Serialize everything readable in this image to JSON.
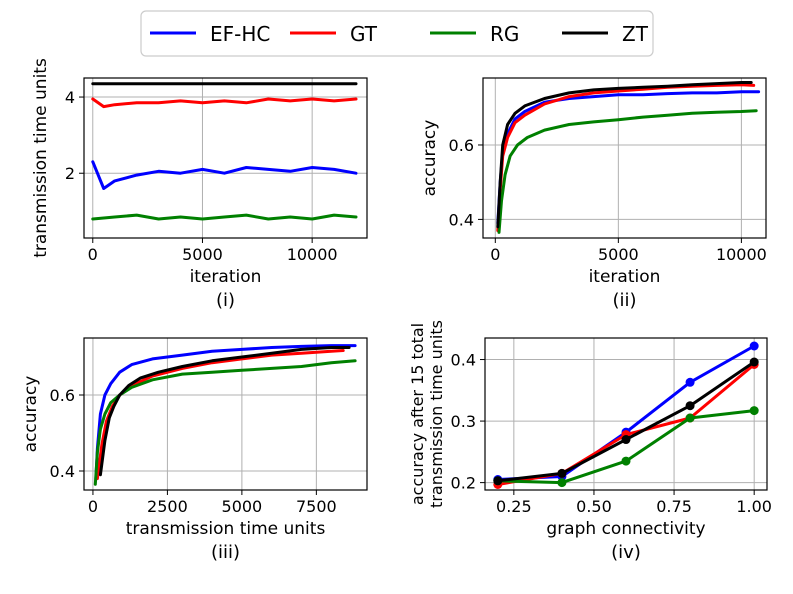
{
  "legend": {
    "placement": "top-center",
    "entries": [
      {
        "label": "EF-HC",
        "color": "#0000ff"
      },
      {
        "label": "GT",
        "color": "#ff0000"
      },
      {
        "label": "RG",
        "color": "#008000"
      },
      {
        "label": "ZT",
        "color": "#000000"
      }
    ]
  },
  "chart_data": [
    {
      "id": "i",
      "type": "line",
      "caption": "(i)",
      "xlabel": "iteration",
      "ylabel": "transmission time units",
      "xlim": [
        -400,
        12500
      ],
      "ylim": [
        0.3,
        4.5
      ],
      "xticks": [
        0,
        5000,
        10000
      ],
      "yticks": [
        2,
        4
      ],
      "grid": true,
      "series": [
        {
          "name": "ZT",
          "x": [
            0,
            12000
          ],
          "y": [
            4.35,
            4.35
          ]
        },
        {
          "name": "GT",
          "x": [
            0,
            500,
            1000,
            2000,
            3000,
            4000,
            5000,
            6000,
            7000,
            8000,
            9000,
            10000,
            11000,
            12000
          ],
          "y": [
            3.95,
            3.75,
            3.8,
            3.85,
            3.85,
            3.9,
            3.85,
            3.9,
            3.85,
            3.95,
            3.9,
            3.95,
            3.9,
            3.95
          ]
        },
        {
          "name": "EF-HC",
          "x": [
            0,
            500,
            1000,
            2000,
            3000,
            4000,
            5000,
            6000,
            7000,
            8000,
            9000,
            10000,
            11000,
            12000
          ],
          "y": [
            2.3,
            1.6,
            1.8,
            1.95,
            2.05,
            2.0,
            2.1,
            2.0,
            2.15,
            2.1,
            2.05,
            2.15,
            2.1,
            2.0
          ]
        },
        {
          "name": "RG",
          "x": [
            0,
            1000,
            2000,
            3000,
            4000,
            5000,
            6000,
            7000,
            8000,
            9000,
            10000,
            11000,
            12000
          ],
          "y": [
            0.8,
            0.85,
            0.9,
            0.8,
            0.85,
            0.8,
            0.85,
            0.9,
            0.8,
            0.85,
            0.8,
            0.9,
            0.85
          ]
        }
      ]
    },
    {
      "id": "ii",
      "type": "line",
      "caption": "(ii)",
      "xlabel": "iteration",
      "ylabel": "accuracy",
      "xlim": [
        -500,
        11000
      ],
      "ylim": [
        0.35,
        0.78
      ],
      "xticks": [
        0,
        5000,
        10000
      ],
      "yticks": [
        0.4,
        0.6
      ],
      "grid": true,
      "series": [
        {
          "name": "EF-HC",
          "x": [
            100,
            200,
            300,
            500,
            800,
            1200,
            2000,
            3000,
            4000,
            5000,
            6000,
            7000,
            8000,
            9000,
            10000,
            10700
          ],
          "y": [
            0.39,
            0.5,
            0.58,
            0.63,
            0.67,
            0.69,
            0.715,
            0.725,
            0.73,
            0.735,
            0.735,
            0.738,
            0.74,
            0.74,
            0.743,
            0.743
          ]
        },
        {
          "name": "GT",
          "x": [
            100,
            200,
            300,
            500,
            800,
            1200,
            2000,
            3000,
            4000,
            5000,
            6000,
            7000,
            8000,
            9000,
            10000,
            10500
          ],
          "y": [
            0.37,
            0.48,
            0.57,
            0.62,
            0.66,
            0.68,
            0.71,
            0.73,
            0.74,
            0.745,
            0.75,
            0.755,
            0.758,
            0.76,
            0.762,
            0.76
          ]
        },
        {
          "name": "RG",
          "x": [
            150,
            250,
            400,
            600,
            900,
            1300,
            2000,
            3000,
            4000,
            5000,
            6000,
            7000,
            8000,
            9000,
            10000,
            10600
          ],
          "y": [
            0.365,
            0.45,
            0.52,
            0.57,
            0.6,
            0.62,
            0.64,
            0.655,
            0.662,
            0.668,
            0.675,
            0.68,
            0.685,
            0.688,
            0.69,
            0.692
          ]
        },
        {
          "name": "ZT",
          "x": [
            100,
            200,
            300,
            500,
            800,
            1200,
            2000,
            3000,
            4000,
            5000,
            6000,
            7000,
            8000,
            9000,
            10000,
            10400
          ],
          "y": [
            0.38,
            0.5,
            0.6,
            0.655,
            0.685,
            0.705,
            0.725,
            0.74,
            0.748,
            0.752,
            0.755,
            0.758,
            0.762,
            0.765,
            0.768,
            0.768
          ]
        }
      ]
    },
    {
      "id": "iii",
      "type": "line",
      "caption": "(iii)",
      "xlabel": "transmission time units",
      "ylabel": "accuracy",
      "xlim": [
        -300,
        9200
      ],
      "ylim": [
        0.35,
        0.75
      ],
      "xticks": [
        0,
        2500,
        5000,
        7500
      ],
      "yticks": [
        0.4,
        0.6
      ],
      "grid": true,
      "series": [
        {
          "name": "EF-HC",
          "x": [
            100,
            150,
            250,
            400,
            600,
            900,
            1300,
            2000,
            3000,
            4000,
            5000,
            6000,
            7000,
            8000,
            8800
          ],
          "y": [
            0.38,
            0.46,
            0.55,
            0.6,
            0.63,
            0.66,
            0.68,
            0.695,
            0.705,
            0.715,
            0.72,
            0.725,
            0.728,
            0.73,
            0.73
          ]
        },
        {
          "name": "GT",
          "x": [
            150,
            300,
            450,
            650,
            900,
            1300,
            2000,
            3000,
            4000,
            5000,
            6000,
            7000,
            8000,
            8400
          ],
          "y": [
            0.38,
            0.47,
            0.53,
            0.57,
            0.6,
            0.625,
            0.65,
            0.67,
            0.685,
            0.695,
            0.705,
            0.71,
            0.715,
            0.717
          ]
        },
        {
          "name": "RG",
          "x": [
            80,
            150,
            250,
            400,
            600,
            900,
            1300,
            2000,
            3000,
            4000,
            5000,
            6000,
            7000,
            8000,
            8800
          ],
          "y": [
            0.365,
            0.45,
            0.51,
            0.55,
            0.58,
            0.6,
            0.62,
            0.64,
            0.655,
            0.66,
            0.665,
            0.67,
            0.675,
            0.685,
            0.69
          ]
        },
        {
          "name": "ZT",
          "x": [
            250,
            400,
            550,
            700,
            900,
            1200,
            1600,
            2200,
            3000,
            4000,
            5000,
            6000,
            7000,
            8000,
            8600
          ],
          "y": [
            0.39,
            0.48,
            0.54,
            0.57,
            0.6,
            0.625,
            0.645,
            0.66,
            0.675,
            0.69,
            0.7,
            0.71,
            0.72,
            0.725,
            0.725
          ]
        }
      ]
    },
    {
      "id": "iv",
      "type": "line",
      "caption": "(iv)",
      "xlabel": "graph connectivity",
      "ylabel_lines": [
        "accuracy after  15 total",
        "transmission time units"
      ],
      "xlim": [
        0.16,
        1.04
      ],
      "ylim": [
        0.188,
        0.435
      ],
      "xticks": [
        0.25,
        0.5,
        0.75,
        1.0
      ],
      "xtick_labels": [
        "0.25",
        "0.50",
        "0.75",
        "1.00"
      ],
      "yticks": [
        0.2,
        0.3,
        0.4
      ],
      "grid": true,
      "x": [
        0.2,
        0.4,
        0.6,
        0.8,
        1.0
      ],
      "series": [
        {
          "name": "EF-HC",
          "y": [
            0.205,
            0.21,
            0.282,
            0.363,
            0.422
          ]
        },
        {
          "name": "GT",
          "y": [
            0.197,
            0.215,
            0.278,
            0.305,
            0.392
          ]
        },
        {
          "name": "RG",
          "y": [
            0.203,
            0.2,
            0.235,
            0.305,
            0.317
          ]
        },
        {
          "name": "ZT",
          "y": [
            0.203,
            0.215,
            0.27,
            0.325,
            0.396
          ]
        }
      ]
    }
  ]
}
